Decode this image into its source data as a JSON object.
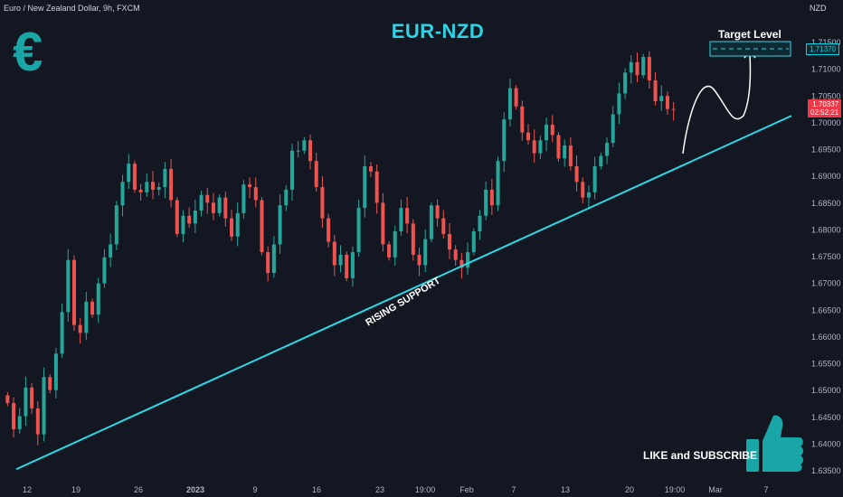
{
  "header": {
    "symbol_description": "Euro / New Zealand Dollar, 9h, FXCM",
    "quote_currency": "NZD"
  },
  "annotations": {
    "title": "EUR-NZD",
    "currency_symbol": "€",
    "target_label": "Target Level",
    "trendline_label": "RISING SUPPORT",
    "cta": "LIKE and SUBSCRIBE",
    "thumbs_icon": "thumbs-up-icon"
  },
  "price_tags": {
    "target_price": "1.71370",
    "last_price": "1.70337",
    "countdown": "02:52:21"
  },
  "colors": {
    "background": "#131722",
    "up_candle": "#26a69a",
    "down_candle": "#ef5350",
    "trendline": "#2bd9e8",
    "title": "#2fd3e6",
    "euro_logo": "#1aa6a6",
    "price_tag_last": "#f23645"
  },
  "chart_data": {
    "type": "candlestick",
    "symbol": "EURNZD",
    "timeframe": "9h",
    "source": "FXCM",
    "x_tick_labels": [
      "12",
      "19",
      "26",
      "2023",
      "9",
      "16",
      "23",
      "19:00",
      "Feb",
      "7",
      "13",
      "20",
      "19:00",
      "Mar",
      "7"
    ],
    "y_tick_labels": [
      "1.71500",
      "1.71000",
      "1.70500",
      "1.70000",
      "1.69500",
      "1.69000",
      "1.68500",
      "1.68000",
      "1.67500",
      "1.67000",
      "1.66500",
      "1.66000",
      "1.65500",
      "1.65000",
      "1.64500",
      "1.64000",
      "1.63500"
    ],
    "ylim": [
      1.634,
      1.7175
    ],
    "close_series": [
      1.647,
      1.642,
      1.6445,
      1.65,
      1.646,
      1.641,
      1.652,
      1.6495,
      1.6565,
      1.6645,
      1.6745,
      1.662,
      1.6605,
      1.6665,
      1.664,
      1.67,
      1.675,
      1.6775,
      1.685,
      1.6895,
      1.693,
      1.688,
      1.6875,
      1.6895,
      1.688,
      1.6885,
      1.692,
      1.686,
      1.6795,
      1.683,
      1.6815,
      1.684,
      1.687,
      1.6855,
      1.6835,
      1.6865,
      1.6825,
      1.679,
      1.6835,
      1.689,
      1.6885,
      1.686,
      1.676,
      1.672,
      1.6775,
      1.685,
      1.688,
      1.6955,
      1.6955,
      1.6975,
      1.6935,
      1.6885,
      1.6825,
      1.678,
      1.6735,
      1.6755,
      1.671,
      1.676,
      1.6845,
      1.6925,
      1.6915,
      1.6855,
      1.6775,
      1.675,
      1.68,
      1.6845,
      1.6815,
      1.6755,
      1.6735,
      1.6785,
      1.685,
      1.6825,
      1.6795,
      1.6765,
      1.6745,
      1.673,
      1.676,
      1.68,
      1.683,
      1.688,
      1.685,
      1.6935,
      1.7015,
      1.7075,
      1.704,
      1.699,
      1.6975,
      1.695,
      1.6975,
      1.7005,
      1.6985,
      1.694,
      1.6965,
      1.6925,
      1.6895,
      1.6865,
      1.6875,
      1.6925,
      1.6945,
      1.697,
      1.7025,
      1.7065,
      1.7105,
      1.7125,
      1.71,
      1.7135,
      1.709,
      1.705,
      1.706,
      1.7035,
      1.7034
    ],
    "trendline": {
      "label": "RISING SUPPORT",
      "points": [
        {
          "x": 0.0,
          "y": 1.6343
        },
        {
          "x": 1.0,
          "y": 1.7022
        }
      ]
    },
    "target_level": {
      "label": "Target Level",
      "price": 1.7137
    },
    "last_price": 1.70337,
    "grid": false
  }
}
